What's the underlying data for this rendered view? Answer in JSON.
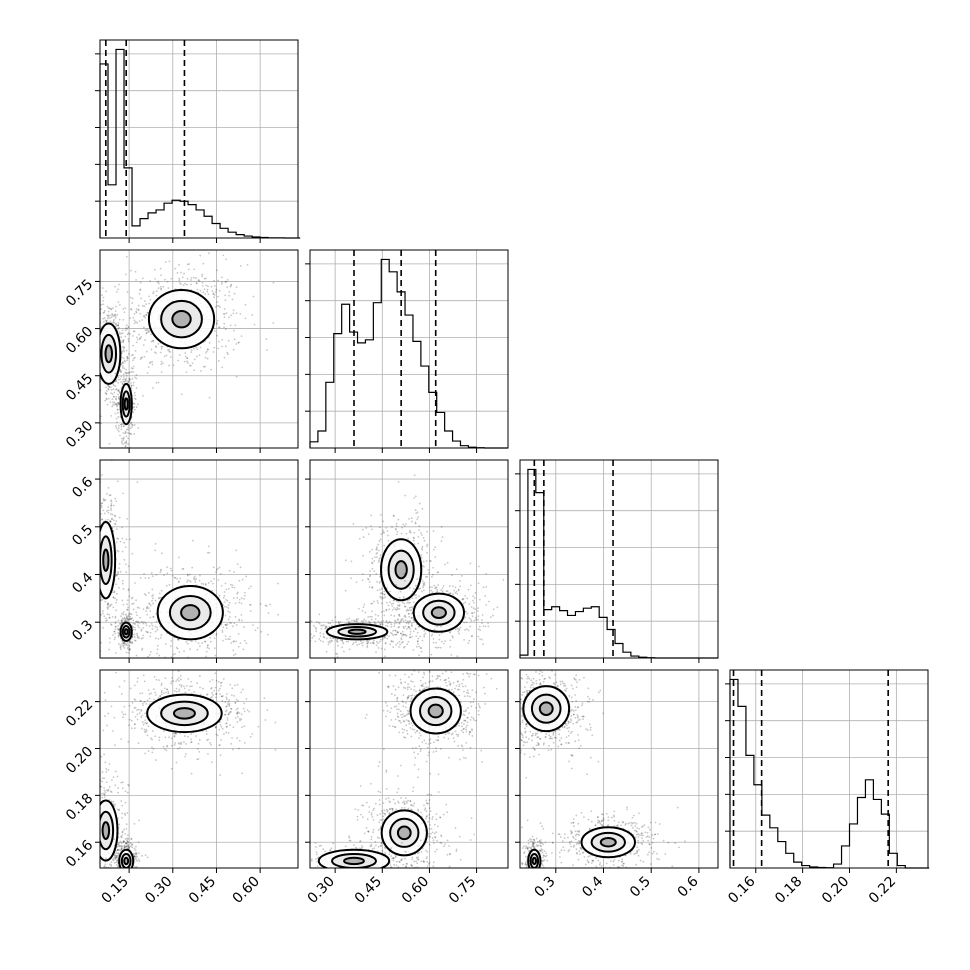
{
  "chart_data": {
    "type": "corner",
    "title": "",
    "parameters": [
      {
        "label": "",
        "range": [
          0.05,
          0.73
        ],
        "ticks": [
          0.15,
          0.3,
          0.45,
          0.6
        ],
        "tick_labels": [
          "0.15",
          "0.30",
          "0.45",
          "0.60"
        ],
        "quantiles": [
          0.07,
          0.14,
          0.34
        ]
      },
      {
        "label": "",
        "range": [
          0.22,
          0.85
        ],
        "ticks": [
          0.3,
          0.45,
          0.6,
          0.75
        ],
        "tick_labels": [
          "0.30",
          "0.45",
          "0.60",
          "0.75"
        ],
        "quantiles": [
          0.36,
          0.51,
          0.62
        ]
      },
      {
        "label": "",
        "range": [
          0.225,
          0.64
        ],
        "ticks": [
          0.3,
          0.4,
          0.5,
          0.6
        ],
        "tick_labels": [
          "0.3",
          "0.4",
          "0.5",
          "0.6"
        ],
        "quantiles": [
          0.255,
          0.275,
          0.42
        ]
      },
      {
        "label": "",
        "range": [
          0.149,
          0.2335
        ],
        "ticks": [
          0.16,
          0.18,
          0.2,
          0.22
        ],
        "tick_labels": [
          "0.16",
          "0.18",
          "0.20",
          "0.22"
        ],
        "quantiles": [
          0.1505,
          0.1625,
          0.2165
        ]
      }
    ],
    "histograms": [
      {
        "param": 0,
        "bins": [
          0.05,
          0.0775,
          0.105,
          0.1325,
          0.16,
          0.1875,
          0.215,
          0.2425,
          0.27,
          0.2975,
          0.325,
          0.3525,
          0.38,
          0.4075,
          0.435,
          0.4625,
          0.49,
          0.5175,
          0.545,
          0.5725,
          0.6,
          0.6275,
          0.655,
          0.6825,
          0.71,
          0.7375
        ],
        "counts": [
          3600,
          1100,
          3900,
          1450,
          250,
          400,
          520,
          580,
          720,
          780,
          760,
          690,
          580,
          450,
          300,
          200,
          120,
          70,
          40,
          20,
          10,
          4,
          2,
          0,
          0
        ]
      },
      {
        "param": 1,
        "bins": [
          0.22,
          0.2452,
          0.2704,
          0.2956,
          0.3208,
          0.346,
          0.3712,
          0.3964,
          0.4216,
          0.4468,
          0.472,
          0.4972,
          0.5224,
          0.5476,
          0.5728,
          0.598,
          0.6232,
          0.6484,
          0.6736,
          0.6988,
          0.724,
          0.7492,
          0.7744,
          0.7996,
          0.8248,
          0.85
        ],
        "counts": [
          80,
          220,
          850,
          1480,
          1860,
          1500,
          1360,
          1400,
          1880,
          2440,
          2280,
          2020,
          1720,
          1380,
          1060,
          720,
          460,
          220,
          90,
          30,
          10,
          4,
          0,
          0,
          0
        ]
      },
      {
        "param": 2,
        "bins": [
          0.225,
          0.2416,
          0.2582,
          0.2748,
          0.2914,
          0.308,
          0.3246,
          0.3412,
          0.3578,
          0.3744,
          0.391,
          0.4076,
          0.4242,
          0.4408,
          0.4574,
          0.474,
          0.4906,
          0.5072,
          0.5238,
          0.5404,
          0.557,
          0.5736,
          0.5902,
          0.6068,
          0.6234,
          0.64
        ],
        "counts": [
          60,
          3900,
          3420,
          1000,
          1060,
          980,
          880,
          960,
          1030,
          1060,
          840,
          590,
          300,
          120,
          40,
          15,
          5,
          0,
          0,
          0,
          0,
          0,
          0,
          0,
          0
        ]
      },
      {
        "param": 3,
        "bins": [
          0.149,
          0.1524,
          0.1558,
          0.1592,
          0.1626,
          0.166,
          0.1694,
          0.1728,
          0.1762,
          0.1796,
          0.183,
          0.1864,
          0.1898,
          0.1932,
          0.1966,
          0.2,
          0.2034,
          0.2068,
          0.2102,
          0.2136,
          0.217,
          0.2204,
          0.2238,
          0.2272,
          0.2306,
          0.234
        ],
        "counts": [
          3850,
          3300,
          2300,
          1700,
          1080,
          820,
          540,
          300,
          120,
          50,
          20,
          10,
          5,
          80,
          450,
          900,
          1440,
          1800,
          1400,
          1100,
          300,
          50,
          0,
          0,
          0
        ]
      }
    ],
    "scatter_panels": [
      {
        "x": 0,
        "y": 1,
        "modes": [
          {
            "mean": [
              0.33,
              0.63
            ],
            "sd": [
              0.07,
              0.058
            ],
            "weight": 0.44
          },
          {
            "mean": [
              0.08,
              0.52
            ],
            "sd": [
              0.025,
              0.06
            ],
            "weight": 0.34
          },
          {
            "mean": [
              0.14,
              0.36
            ],
            "sd": [
              0.012,
              0.04
            ],
            "weight": 0.22
          }
        ]
      },
      {
        "x": 0,
        "y": 2,
        "modes": [
          {
            "mean": [
              0.36,
              0.32
            ],
            "sd": [
              0.07,
              0.035
            ],
            "weight": 0.44
          },
          {
            "mean": [
              0.07,
              0.43
            ],
            "sd": [
              0.02,
              0.05
            ],
            "weight": 0.34
          },
          {
            "mean": [
              0.14,
              0.28
            ],
            "sd": [
              0.012,
              0.012
            ],
            "weight": 0.22
          }
        ]
      },
      {
        "x": 0,
        "y": 3,
        "modes": [
          {
            "mean": [
              0.34,
              0.215
            ],
            "sd": [
              0.08,
              0.005
            ],
            "weight": 0.44
          },
          {
            "mean": [
              0.07,
              0.165
            ],
            "sd": [
              0.025,
              0.008
            ],
            "weight": 0.34
          },
          {
            "mean": [
              0.14,
              0.152
            ],
            "sd": [
              0.015,
              0.003
            ],
            "weight": 0.22
          }
        ]
      },
      {
        "x": 1,
        "y": 2,
        "modes": [
          {
            "mean": [
              0.51,
              0.41
            ],
            "sd": [
              0.04,
              0.04
            ],
            "weight": 0.34
          },
          {
            "mean": [
              0.63,
              0.32
            ],
            "sd": [
              0.05,
              0.025
            ],
            "weight": 0.34
          },
          {
            "mean": [
              0.37,
              0.28
            ],
            "sd": [
              0.06,
              0.01
            ],
            "weight": 0.32
          }
        ]
      },
      {
        "x": 1,
        "y": 3,
        "modes": [
          {
            "mean": [
              0.62,
              0.216
            ],
            "sd": [
              0.05,
              0.006
            ],
            "weight": 0.44
          },
          {
            "mean": [
              0.52,
              0.164
            ],
            "sd": [
              0.045,
              0.006
            ],
            "weight": 0.34
          },
          {
            "mean": [
              0.36,
              0.152
            ],
            "sd": [
              0.07,
              0.003
            ],
            "weight": 0.22
          }
        ]
      },
      {
        "x": 2,
        "y": 3,
        "modes": [
          {
            "mean": [
              0.28,
              0.217
            ],
            "sd": [
              0.03,
              0.006
            ],
            "weight": 0.44
          },
          {
            "mean": [
              0.41,
              0.16
            ],
            "sd": [
              0.035,
              0.004
            ],
            "weight": 0.34
          },
          {
            "mean": [
              0.255,
              0.152
            ],
            "sd": [
              0.008,
              0.003
            ],
            "weight": 0.22
          }
        ]
      }
    ],
    "grid": true,
    "quantile_line_style": "dashed"
  }
}
